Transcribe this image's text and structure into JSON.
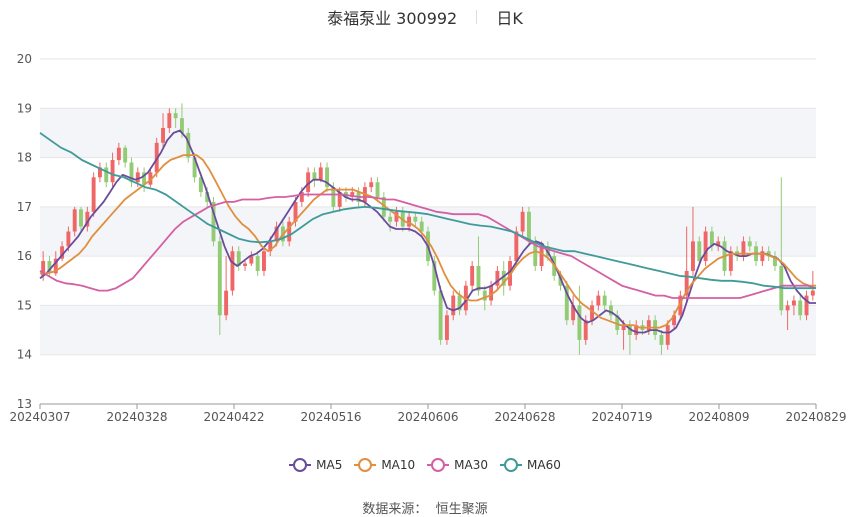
{
  "header": {
    "stock": "泰福泵业 300992",
    "period": "日K"
  },
  "source": {
    "label": "数据来源：",
    "provider": "恒生聚源"
  },
  "colors": {
    "up": "#ee6666",
    "down": "#91cc75",
    "ma5": "#6a4c9c",
    "ma10": "#e08f3f",
    "ma30": "#d45fa4",
    "ma60": "#3f9a9a",
    "band": "#f4f5f9",
    "grid": "#e6e6e6"
  },
  "chart_data": {
    "type": "candlestick",
    "ylim": [
      13,
      20
    ],
    "y_ticks": [
      "13",
      "14",
      "15",
      "16",
      "17",
      "18",
      "19",
      "20"
    ],
    "x_ticks": [
      "20240307",
      "20240328",
      "20240422",
      "20240516",
      "20240606",
      "20240628",
      "20240719",
      "20240809",
      "20240829"
    ],
    "grid": true,
    "legend_position": "bottom",
    "candles": [
      [
        15.6,
        15.9,
        16.1,
        15.5
      ],
      [
        15.9,
        15.65,
        16.0,
        15.6
      ],
      [
        15.65,
        15.95,
        16.1,
        15.6
      ],
      [
        15.95,
        16.2,
        16.3,
        15.9
      ],
      [
        16.2,
        16.5,
        16.6,
        16.1
      ],
      [
        16.5,
        16.95,
        17.0,
        16.4
      ],
      [
        16.95,
        16.6,
        17.0,
        16.5
      ],
      [
        16.6,
        16.9,
        17.0,
        16.5
      ],
      [
        16.9,
        17.6,
        17.7,
        16.8
      ],
      [
        17.6,
        17.8,
        17.9,
        17.5
      ],
      [
        17.8,
        17.5,
        17.9,
        17.4
      ],
      [
        17.5,
        17.95,
        18.1,
        17.4
      ],
      [
        17.95,
        18.2,
        18.3,
        17.85
      ],
      [
        18.2,
        17.9,
        18.25,
        17.8
      ],
      [
        17.9,
        17.5,
        18.0,
        17.4
      ],
      [
        17.5,
        17.7,
        17.8,
        17.4
      ],
      [
        17.7,
        17.45,
        17.8,
        17.3
      ],
      [
        17.45,
        17.7,
        17.8,
        17.4
      ],
      [
        17.7,
        18.3,
        18.4,
        17.6
      ],
      [
        18.3,
        18.6,
        18.9,
        18.2
      ],
      [
        18.6,
        18.9,
        19.0,
        18.5
      ],
      [
        18.9,
        18.8,
        19.0,
        18.6
      ],
      [
        18.8,
        18.5,
        19.1,
        18.4
      ],
      [
        18.5,
        18.0,
        18.6,
        17.9
      ],
      [
        18.0,
        17.6,
        18.1,
        17.5
      ],
      [
        17.6,
        17.3,
        17.7,
        17.2
      ],
      [
        17.3,
        17.1,
        17.4,
        17.0
      ],
      [
        17.1,
        16.3,
        17.2,
        16.2
      ],
      [
        16.3,
        14.8,
        16.4,
        14.4
      ],
      [
        14.8,
        15.3,
        16.0,
        14.7
      ],
      [
        15.3,
        16.1,
        16.2,
        15.2
      ],
      [
        16.1,
        15.8,
        16.2,
        15.7
      ],
      [
        15.8,
        15.85,
        15.9,
        15.7
      ],
      [
        15.85,
        16.0,
        16.1,
        15.8
      ],
      [
        16.0,
        15.7,
        16.1,
        15.6
      ],
      [
        15.7,
        16.1,
        16.2,
        15.6
      ],
      [
        16.1,
        16.3,
        16.4,
        16.0
      ],
      [
        16.3,
        16.6,
        16.7,
        16.2
      ],
      [
        16.6,
        16.3,
        16.7,
        16.2
      ],
      [
        16.3,
        16.7,
        16.8,
        16.2
      ],
      [
        16.7,
        17.1,
        17.2,
        16.6
      ],
      [
        17.1,
        17.3,
        17.4,
        17.0
      ],
      [
        17.3,
        17.7,
        17.8,
        17.2
      ],
      [
        17.7,
        17.55,
        17.8,
        17.4
      ],
      [
        17.55,
        17.8,
        17.9,
        17.5
      ],
      [
        17.8,
        17.4,
        17.9,
        17.3
      ],
      [
        17.4,
        17.0,
        17.5,
        16.9
      ],
      [
        17.0,
        17.3,
        17.4,
        16.9
      ],
      [
        17.3,
        17.2,
        17.4,
        17.1
      ],
      [
        17.2,
        17.3,
        17.4,
        17.1
      ],
      [
        17.3,
        17.1,
        17.4,
        17.0
      ],
      [
        17.1,
        17.4,
        17.5,
        17.0
      ],
      [
        17.4,
        17.5,
        17.6,
        17.3
      ],
      [
        17.5,
        17.2,
        17.6,
        17.1
      ],
      [
        17.2,
        16.8,
        17.3,
        16.7
      ],
      [
        16.8,
        16.7,
        16.9,
        16.5
      ],
      [
        16.7,
        16.9,
        17.0,
        16.6
      ],
      [
        16.9,
        16.6,
        17.0,
        16.5
      ],
      [
        16.6,
        16.8,
        16.9,
        16.5
      ],
      [
        16.8,
        16.7,
        16.9,
        16.6
      ],
      [
        16.7,
        16.5,
        16.8,
        16.4
      ],
      [
        16.5,
        15.9,
        16.6,
        15.8
      ],
      [
        15.9,
        15.3,
        16.0,
        15.2
      ],
      [
        15.3,
        14.3,
        15.4,
        14.2
      ],
      [
        14.3,
        14.8,
        14.9,
        14.2
      ],
      [
        14.8,
        15.2,
        15.3,
        14.7
      ],
      [
        15.2,
        14.9,
        15.3,
        14.8
      ],
      [
        14.9,
        15.4,
        15.5,
        14.8
      ],
      [
        15.4,
        15.8,
        15.9,
        15.3
      ],
      [
        15.8,
        15.3,
        16.4,
        15.2
      ],
      [
        15.3,
        15.1,
        15.4,
        14.9
      ],
      [
        15.1,
        15.4,
        15.5,
        15.0
      ],
      [
        15.4,
        15.7,
        15.8,
        15.3
      ],
      [
        15.7,
        15.4,
        15.9,
        15.2
      ],
      [
        15.4,
        15.9,
        16.0,
        15.3
      ],
      [
        15.9,
        16.5,
        16.6,
        15.8
      ],
      [
        16.5,
        16.9,
        17.0,
        16.4
      ],
      [
        16.9,
        16.3,
        17.0,
        16.2
      ],
      [
        16.3,
        15.8,
        16.4,
        15.7
      ],
      [
        15.8,
        16.2,
        16.3,
        15.7
      ],
      [
        16.2,
        16.0,
        16.3,
        15.9
      ],
      [
        16.0,
        15.6,
        16.1,
        15.5
      ],
      [
        15.6,
        15.4,
        15.7,
        15.3
      ],
      [
        15.4,
        14.7,
        15.5,
        14.6
      ],
      [
        14.7,
        15.0,
        15.2,
        14.6
      ],
      [
        15.0,
        14.3,
        15.4,
        14.0
      ],
      [
        14.3,
        14.7,
        14.8,
        14.2
      ],
      [
        14.7,
        15.0,
        15.1,
        14.6
      ],
      [
        15.0,
        15.2,
        15.3,
        14.9
      ],
      [
        15.2,
        15.0,
        15.3,
        14.9
      ],
      [
        15.0,
        14.8,
        15.1,
        14.7
      ],
      [
        14.8,
        14.5,
        14.9,
        14.4
      ],
      [
        14.5,
        14.6,
        14.7,
        14.1
      ],
      [
        14.6,
        14.4,
        14.7,
        14.0
      ],
      [
        14.4,
        14.6,
        14.7,
        14.3
      ],
      [
        14.6,
        14.5,
        14.7,
        14.4
      ],
      [
        14.5,
        14.7,
        14.8,
        14.4
      ],
      [
        14.7,
        14.4,
        14.8,
        14.3
      ],
      [
        14.4,
        14.2,
        14.5,
        14.0
      ],
      [
        14.2,
        14.6,
        14.7,
        14.1
      ],
      [
        14.6,
        14.8,
        14.9,
        14.5
      ],
      [
        14.8,
        15.2,
        15.3,
        14.7
      ],
      [
        15.2,
        15.7,
        16.6,
        15.1
      ],
      [
        15.7,
        16.3,
        17.0,
        15.6
      ],
      [
        16.3,
        15.9,
        16.4,
        15.8
      ],
      [
        15.9,
        16.5,
        16.6,
        15.8
      ],
      [
        16.5,
        16.2,
        16.6,
        16.1
      ],
      [
        16.2,
        16.3,
        16.4,
        16.1
      ],
      [
        16.3,
        15.7,
        16.4,
        15.6
      ],
      [
        15.7,
        16.1,
        16.2,
        15.6
      ],
      [
        16.1,
        16.0,
        16.2,
        15.9
      ],
      [
        16.0,
        16.3,
        16.4,
        15.9
      ],
      [
        16.3,
        16.2,
        16.4,
        16.1
      ],
      [
        16.2,
        15.9,
        16.3,
        15.8
      ],
      [
        15.9,
        16.1,
        16.2,
        15.8
      ],
      [
        16.1,
        16.0,
        16.2,
        15.9
      ],
      [
        16.0,
        15.8,
        16.1,
        15.7
      ],
      [
        15.8,
        14.9,
        17.6,
        14.8
      ],
      [
        14.9,
        15.0,
        15.1,
        14.5
      ],
      [
        15.0,
        15.1,
        15.2,
        14.8
      ],
      [
        15.1,
        14.8,
        15.2,
        14.7
      ],
      [
        14.8,
        15.2,
        15.3,
        14.7
      ],
      [
        15.2,
        15.3,
        15.7,
        15.1
      ]
    ],
    "series": [
      {
        "name": "MA5",
        "color": "#6a4c9c",
        "values": [
          15.55,
          15.65,
          15.8,
          15.95,
          16.1,
          16.25,
          16.4,
          16.6,
          16.8,
          16.95,
          17.1,
          17.3,
          17.5,
          17.65,
          17.6,
          17.55,
          17.6,
          17.7,
          17.9,
          18.1,
          18.35,
          18.5,
          18.55,
          18.4,
          18.1,
          17.75,
          17.4,
          17.0,
          16.6,
          16.2,
          15.9,
          15.8,
          15.9,
          16.0,
          16.05,
          16.15,
          16.3,
          16.5,
          16.7,
          16.9,
          17.1,
          17.3,
          17.45,
          17.55,
          17.55,
          17.5,
          17.4,
          17.3,
          17.2,
          17.15,
          17.15,
          17.1,
          17.0,
          16.9,
          16.75,
          16.6,
          16.55,
          16.55,
          16.55,
          16.5,
          16.4,
          16.2,
          15.8,
          15.3,
          14.95,
          14.9,
          14.95,
          15.1,
          15.3,
          15.35,
          15.35,
          15.4,
          15.5,
          15.6,
          15.7,
          15.9,
          16.1,
          16.25,
          16.3,
          16.25,
          16.05,
          15.8,
          15.5,
          15.2,
          14.95,
          14.75,
          14.65,
          14.7,
          14.8,
          14.9,
          14.85,
          14.75,
          14.6,
          14.5,
          14.45,
          14.45,
          14.5,
          14.5,
          14.45,
          14.45,
          14.55,
          14.8,
          15.2,
          15.6,
          15.95,
          16.15,
          16.25,
          16.2,
          16.1,
          16.05,
          16.0,
          16.0,
          16.05,
          16.05,
          16.05,
          16.0,
          15.95,
          15.8,
          15.5,
          15.3,
          15.15,
          15.05,
          15.05
        ]
      },
      {
        "name": "MA10",
        "color": "#e08f3f",
        "values": [
          15.65,
          15.65,
          15.68,
          15.75,
          15.85,
          15.95,
          16.05,
          16.2,
          16.4,
          16.55,
          16.7,
          16.85,
          17.0,
          17.15,
          17.25,
          17.35,
          17.45,
          17.55,
          17.7,
          17.85,
          17.95,
          18.0,
          18.05,
          18.05,
          18.05,
          17.95,
          17.75,
          17.5,
          17.25,
          17.0,
          16.8,
          16.65,
          16.55,
          16.4,
          16.2,
          16.1,
          16.2,
          16.4,
          16.55,
          16.7,
          16.85,
          17.0,
          17.15,
          17.25,
          17.35,
          17.35,
          17.35,
          17.35,
          17.35,
          17.3,
          17.25,
          17.2,
          17.1,
          17.0,
          16.9,
          16.8,
          16.7,
          16.65,
          16.55,
          16.4,
          16.2,
          15.95,
          15.65,
          15.4,
          15.25,
          15.15,
          15.1,
          15.1,
          15.15,
          15.2,
          15.3,
          15.45,
          15.6,
          15.8,
          15.95,
          16.05,
          16.1,
          16.05,
          15.95,
          15.8,
          15.6,
          15.4,
          15.2,
          15.05,
          14.95,
          14.85,
          14.75,
          14.7,
          14.65,
          14.6,
          14.6,
          14.6,
          14.55,
          14.55,
          14.55,
          14.55,
          14.6,
          14.75,
          15.0,
          15.25,
          15.45,
          15.6,
          15.75,
          15.85,
          15.95,
          16.0,
          16.05,
          16.05,
          16.05,
          16.05,
          16.05,
          16.05,
          16.0,
          15.95,
          15.85,
          15.7,
          15.55,
          15.45,
          15.4,
          15.4
        ]
      },
      {
        "name": "MA30",
        "color": "#d45fa4",
        "values": [
          15.7,
          15.6,
          15.5,
          15.45,
          15.43,
          15.4,
          15.35,
          15.3,
          15.3,
          15.35,
          15.45,
          15.55,
          15.75,
          15.95,
          16.15,
          16.35,
          16.55,
          16.7,
          16.8,
          16.9,
          17.0,
          17.05,
          17.1,
          17.1,
          17.15,
          17.15,
          17.15,
          17.18,
          17.2,
          17.2,
          17.22,
          17.25,
          17.25,
          17.25,
          17.25,
          17.25,
          17.25,
          17.22,
          17.2,
          17.2,
          17.18,
          17.15,
          17.15,
          17.1,
          17.05,
          17.0,
          16.95,
          16.9,
          16.88,
          16.85,
          16.85,
          16.85,
          16.85,
          16.8,
          16.7,
          16.6,
          16.5,
          16.4,
          16.3,
          16.2,
          16.15,
          16.1,
          16.05,
          16.0,
          15.9,
          15.8,
          15.7,
          15.6,
          15.5,
          15.4,
          15.35,
          15.3,
          15.25,
          15.2,
          15.2,
          15.15,
          15.15,
          15.15,
          15.15,
          15.15,
          15.15,
          15.15,
          15.15,
          15.15,
          15.2,
          15.25,
          15.3,
          15.35,
          15.4,
          15.4,
          15.4,
          15.4,
          15.35
        ]
      },
      {
        "name": "MA60",
        "color": "#3f9a9a",
        "values": [
          18.5,
          18.35,
          18.2,
          18.1,
          17.95,
          17.85,
          17.75,
          17.65,
          17.6,
          17.5,
          17.4,
          17.35,
          17.25,
          17.1,
          16.95,
          16.8,
          16.65,
          16.55,
          16.45,
          16.35,
          16.3,
          16.28,
          16.3,
          16.35,
          16.45,
          16.6,
          16.75,
          16.85,
          16.9,
          16.95,
          16.98,
          17.0,
          16.98,
          16.95,
          16.92,
          16.9,
          16.88,
          16.85,
          16.8,
          16.75,
          16.7,
          16.65,
          16.62,
          16.6,
          16.55,
          16.5,
          16.4,
          16.3,
          16.2,
          16.15,
          16.1,
          16.1,
          16.05,
          16.0,
          15.95,
          15.9,
          15.85,
          15.8,
          15.75,
          15.7,
          15.65,
          15.6,
          15.58,
          15.55,
          15.52,
          15.5,
          15.5,
          15.48,
          15.45,
          15.4,
          15.38,
          15.35,
          15.35,
          15.35,
          15.35
        ]
      }
    ]
  }
}
